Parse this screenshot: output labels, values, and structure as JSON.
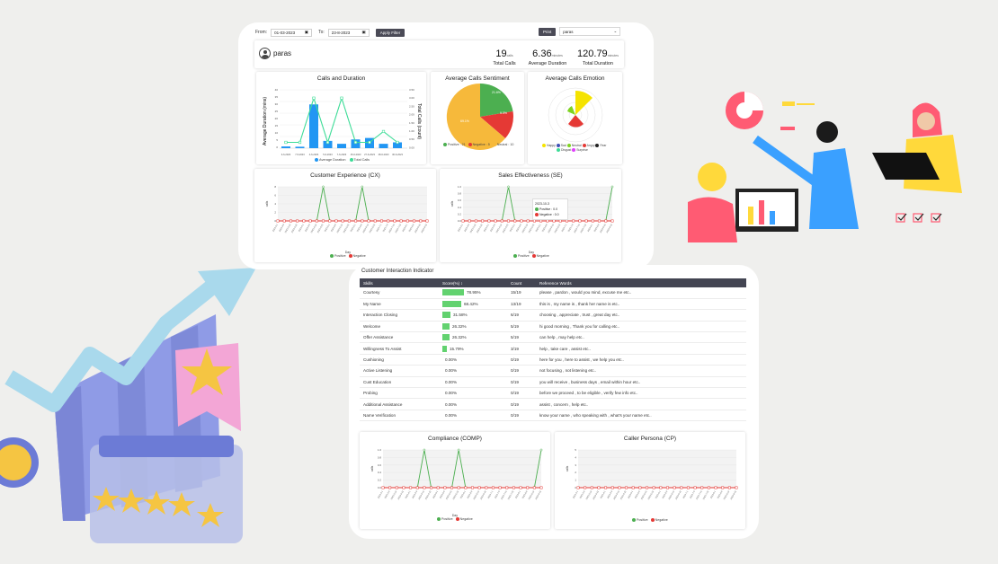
{
  "filters": {
    "from_label": "From:",
    "from_value": "01-03-2023",
    "to_label": "To:",
    "to_value": "23-8-2023",
    "apply_label": "Apply Filter",
    "print_label": "Print",
    "agent_select": "paras"
  },
  "profile": {
    "name": "paras"
  },
  "stats": [
    {
      "value": "19",
      "unit": "calls",
      "label": "Total Calls"
    },
    {
      "value": "6.36",
      "unit": "minutes",
      "label": "Average Duration"
    },
    {
      "value": "120.79",
      "unit": "minutes",
      "label": "Total Duration"
    }
  ],
  "calls_duration": {
    "title": "Calls and Duration",
    "left_axis": "Average Duration (mins)",
    "right_axis": "Total Calls (count)",
    "left_ticks": [
      "40",
      "35",
      "30",
      "25",
      "20",
      "15",
      "10",
      "5",
      "0"
    ],
    "right_ticks": [
      "3.50",
      "3.00",
      "2.50",
      "2.00",
      "1.50",
      "1.00",
      "0.50",
      "0.00"
    ],
    "x_labels": [
      "3-6-2023",
      "7-5-2023",
      "4-6-2023",
      "5-6-2023",
      "7-6-2023",
      "15-6-2023",
      "27-6-2023",
      "28-6-2023",
      "30-6-2023"
    ],
    "legend": [
      "Average Duration",
      "Total Calls"
    ],
    "colors": {
      "bars": "#2196f3",
      "line": "#3ddc97"
    }
  },
  "sentiment": {
    "title": "Average Calls Sentiment",
    "legend": [
      "Positive : 21",
      "Negative : 5",
      "Neutral : 10"
    ],
    "slice_labels": [
      "21.6%",
      "9.3%",
      "69.1%"
    ]
  },
  "emotion": {
    "title": "Average Calls Emotion",
    "legend": [
      "Happy",
      "Sad",
      "Neutral",
      "Angry",
      "Fear",
      "Disgust",
      "Surprise"
    ]
  },
  "cx": {
    "title": "Customer Experience (CX)",
    "y_label": "calls",
    "x_label": "Day",
    "legend": [
      "Positive",
      "Negative"
    ]
  },
  "se": {
    "title": "Sales Effectiveness (SE)",
    "y_label": "calls",
    "x_label": "Day",
    "legend": [
      "Positive",
      "Negative"
    ],
    "tooltip_date": "2023-10-3",
    "tooltip_pos": "Positive : 0.0",
    "tooltip_neg": "Negative : 0.0"
  },
  "cii": {
    "title": "Customer Interaction Indicator",
    "headers": [
      "Skills",
      "Score(%) ↕",
      "Count",
      "Reference Words"
    ],
    "rows": [
      {
        "skill": "Courtesy",
        "score": "78.95%",
        "pct": 78.95,
        "count": "15/19",
        "ref": "please , pardon , would you mind, excuse me etc.."
      },
      {
        "skill": "My Name",
        "score": "68.42%",
        "pct": 68.42,
        "count": "13/19",
        "ref": "this is , my name is , thank her name is etc.."
      },
      {
        "skill": "Interaction Closing",
        "score": "31.58%",
        "pct": 31.58,
        "count": "6/19",
        "ref": "choosing , appreciate , trust , great day etc.."
      },
      {
        "skill": "Welcome",
        "score": "26.32%",
        "pct": 26.32,
        "count": "5/19",
        "ref": "hi good morning , Thank you for calling etc.."
      },
      {
        "skill": "Offer Assistance",
        "score": "26.32%",
        "pct": 26.32,
        "count": "5/19",
        "ref": "can help , may help etc.."
      },
      {
        "skill": "Willingness To Assist",
        "score": "15.79%",
        "pct": 15.79,
        "count": "3/19",
        "ref": "help , take care , assist etc.."
      },
      {
        "skill": "Cushioning",
        "score": "0.00%",
        "pct": 0,
        "count": "0/19",
        "ref": "here for you , here to assist , we help you etc.."
      },
      {
        "skill": "Active Listening",
        "score": "0.00%",
        "pct": 0,
        "count": "0/19",
        "ref": "not focusing , not listening etc.."
      },
      {
        "skill": "Cust Education",
        "score": "0.00%",
        "pct": 0,
        "count": "0/19",
        "ref": "you will receive , business days , email within hour etc.."
      },
      {
        "skill": "Probing",
        "score": "0.00%",
        "pct": 0,
        "count": "0/19",
        "ref": "before we proceed , to be eligible , verify few info etc.."
      },
      {
        "skill": "Additional Assistance",
        "score": "0.00%",
        "pct": 0,
        "count": "0/19",
        "ref": "assist , concern , help etc.."
      },
      {
        "skill": "Name Verification",
        "score": "0.00%",
        "pct": 0,
        "count": "0/19",
        "ref": "know your name , who speaking with , what's your name etc.."
      }
    ]
  },
  "comp": {
    "title": "Compliance (COMP)",
    "y_label": "calls",
    "x_label": "Day",
    "legend": [
      "Positive",
      "Negative"
    ]
  },
  "cp": {
    "title": "Caller Persona (CP)",
    "y_label": "calls",
    "legend": [
      "Positive",
      "Negative"
    ]
  }
}
